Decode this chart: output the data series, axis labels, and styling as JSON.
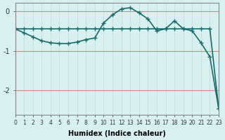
{
  "xlabel": "Humidex (Indice chaleur)",
  "ylabel": "",
  "bg_color": "#d8f0f0",
  "grid_color_v": "#c0d8d8",
  "grid_color_h": "#e08080",
  "line_color": "#1a6b6b",
  "xlim": [
    0,
    23
  ],
  "ylim": [
    -2.6,
    0.2
  ],
  "yticks": [
    0,
    -1,
    -2
  ],
  "xticks": [
    0,
    1,
    2,
    3,
    4,
    5,
    6,
    7,
    8,
    9,
    10,
    11,
    12,
    13,
    14,
    15,
    16,
    17,
    18,
    19,
    20,
    21,
    22,
    23
  ],
  "line1_x": [
    0,
    1,
    2,
    3,
    4,
    5,
    6,
    7,
    8,
    9,
    10,
    11,
    12,
    13,
    14,
    15,
    16,
    17,
    18,
    19,
    20,
    21,
    22,
    23
  ],
  "line1_y": [
    -0.45,
    -0.45,
    -0.45,
    -0.45,
    -0.45,
    -0.45,
    -0.45,
    -0.45,
    -0.45,
    -0.45,
    -0.45,
    -0.45,
    -0.45,
    -0.45,
    -0.45,
    -0.45,
    -0.45,
    -0.45,
    -0.45,
    -0.45,
    -0.45,
    -0.45,
    -0.45,
    -2.45
  ],
  "line2_x": [
    0,
    1,
    2,
    3,
    4,
    5,
    6,
    7,
    8,
    9,
    10,
    11,
    12,
    13,
    14,
    15,
    16,
    17,
    18,
    19,
    20,
    21,
    22,
    23
  ],
  "line2_y": [
    -0.45,
    -0.55,
    -0.65,
    -0.75,
    -0.8,
    -0.82,
    -0.82,
    -0.78,
    -0.72,
    -0.68,
    -0.3,
    -0.1,
    0.05,
    0.08,
    -0.05,
    -0.2,
    -0.5,
    -0.45,
    -0.25,
    -0.45,
    -0.5,
    -0.8,
    -1.15,
    -2.45
  ],
  "marker": "+",
  "markersize": 5,
  "linewidth": 1.2
}
